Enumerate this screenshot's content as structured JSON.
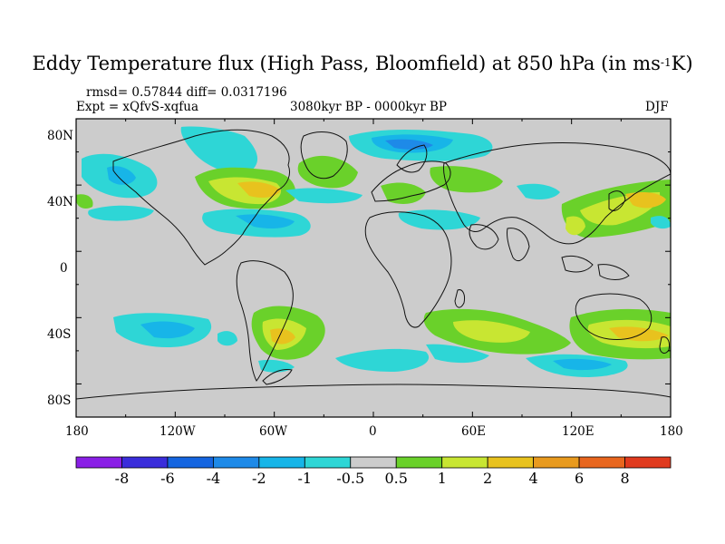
{
  "title": {
    "main": "Eddy Temperature flux (High Pass, Bloomfield) at 850 hPa (in ms",
    "superscript": "-1",
    "suffix": "K)"
  },
  "stats": {
    "rmsd": "rmsd= 0.57844 diff= 0.0317196",
    "expt": "Expt = xQfvS-xqfua",
    "period": "3080kyr BP - 0000kyr BP",
    "season": "DJF"
  },
  "axes": {
    "y_ticks": [
      "80N",
      "40N",
      "0",
      "40S",
      "80S"
    ],
    "x_ticks": [
      "180",
      "120W",
      "60W",
      "0",
      "60E",
      "120E",
      "180"
    ]
  },
  "colorbar": {
    "labels": [
      "-8",
      "-6",
      "-4",
      "-2",
      "-1",
      "-0.5",
      "0.5",
      "1",
      "2",
      "4",
      "6",
      "8"
    ],
    "colors": [
      "#8a1fe6",
      "#3a2ddb",
      "#1565e0",
      "#1e8ae8",
      "#17b5e8",
      "#2ed6d6",
      "#cccccc",
      "#6ad12a",
      "#c8e632",
      "#e8c21e",
      "#e89a1e",
      "#e8661e",
      "#e03a1e"
    ]
  },
  "map": {
    "background": "#cccccc",
    "coast_color": "#111111"
  }
}
